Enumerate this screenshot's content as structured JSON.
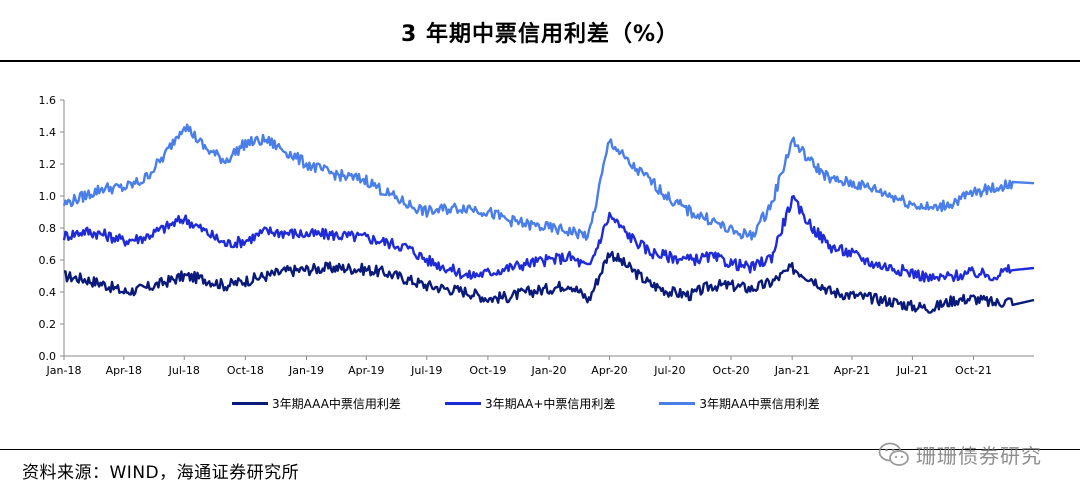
{
  "title": "3 年期中票信用利差（%）",
  "source": "资料来源：WIND，海通证券研究所",
  "watermark": "珊珊债券研究",
  "chart_data": {
    "type": "line",
    "y_ticks": [
      "0.0",
      "0.2",
      "0.4",
      "0.6",
      "0.8",
      "1.0",
      "1.2",
      "1.4",
      "1.6"
    ],
    "ylim": [
      0,
      1.6
    ],
    "x_tick_labels": [
      "Jan-18",
      "Apr-18",
      "Jul-18",
      "Oct-18",
      "Jan-19",
      "Apr-19",
      "Jul-19",
      "Oct-19",
      "Jan-20",
      "Apr-20",
      "Jul-20",
      "Oct-20",
      "Jan-21",
      "Apr-21",
      "Jul-21",
      "Oct-21"
    ],
    "x_start": "2018-01",
    "x_end": "2021-12",
    "grid": false,
    "legend_position": "bottom",
    "months": [
      "2018-01",
      "2018-02",
      "2018-03",
      "2018-04",
      "2018-05",
      "2018-06",
      "2018-07",
      "2018-08",
      "2018-09",
      "2018-10",
      "2018-11",
      "2018-12",
      "2019-01",
      "2019-02",
      "2019-03",
      "2019-04",
      "2019-05",
      "2019-06",
      "2019-07",
      "2019-08",
      "2019-09",
      "2019-10",
      "2019-11",
      "2019-12",
      "2020-01",
      "2020-02",
      "2020-03",
      "2020-04",
      "2020-05",
      "2020-06",
      "2020-07",
      "2020-08",
      "2020-09",
      "2020-10",
      "2020-11",
      "2020-12",
      "2021-01",
      "2021-02",
      "2021-03",
      "2021-04",
      "2021-05",
      "2021-06",
      "2021-07",
      "2021-08",
      "2021-09",
      "2021-10",
      "2021-11",
      "2021-12"
    ],
    "series": [
      {
        "name": "3年期AAA中票信用利差",
        "color": "#0a1a7a",
        "values": [
          0.5,
          0.48,
          0.45,
          0.4,
          0.42,
          0.46,
          0.5,
          0.48,
          0.44,
          0.47,
          0.5,
          0.53,
          0.54,
          0.55,
          0.55,
          0.54,
          0.52,
          0.48,
          0.44,
          0.42,
          0.4,
          0.36,
          0.37,
          0.4,
          0.42,
          0.45,
          0.35,
          0.65,
          0.55,
          0.45,
          0.4,
          0.38,
          0.44,
          0.44,
          0.42,
          0.46,
          0.55,
          0.48,
          0.4,
          0.38,
          0.36,
          0.34,
          0.31,
          0.3,
          0.35,
          0.36,
          0.33,
          0.35
        ]
      },
      {
        "name": "3年期AA+中票信用利差",
        "color": "#1f2bd6",
        "values": [
          0.75,
          0.78,
          0.76,
          0.72,
          0.74,
          0.8,
          0.86,
          0.78,
          0.7,
          0.72,
          0.78,
          0.77,
          0.76,
          0.76,
          0.75,
          0.74,
          0.71,
          0.68,
          0.6,
          0.55,
          0.5,
          0.52,
          0.55,
          0.58,
          0.6,
          0.62,
          0.55,
          0.88,
          0.75,
          0.65,
          0.62,
          0.6,
          0.62,
          0.58,
          0.55,
          0.62,
          0.98,
          0.8,
          0.68,
          0.64,
          0.58,
          0.55,
          0.52,
          0.48,
          0.5,
          0.52,
          0.5,
          0.55
        ]
      },
      {
        "name": "3年期AA中票信用利差",
        "color": "#4a7ee8",
        "values": [
          0.95,
          1.0,
          1.05,
          1.05,
          1.1,
          1.25,
          1.45,
          1.3,
          1.22,
          1.33,
          1.35,
          1.28,
          1.2,
          1.15,
          1.12,
          1.1,
          1.02,
          0.95,
          0.9,
          0.92,
          0.93,
          0.9,
          0.85,
          0.82,
          0.8,
          0.78,
          0.75,
          1.35,
          1.2,
          1.1,
          0.98,
          0.9,
          0.85,
          0.78,
          0.75,
          0.95,
          1.35,
          1.2,
          1.1,
          1.08,
          1.05,
          1.0,
          0.95,
          0.92,
          0.96,
          1.02,
          1.05,
          1.08
        ]
      }
    ]
  }
}
